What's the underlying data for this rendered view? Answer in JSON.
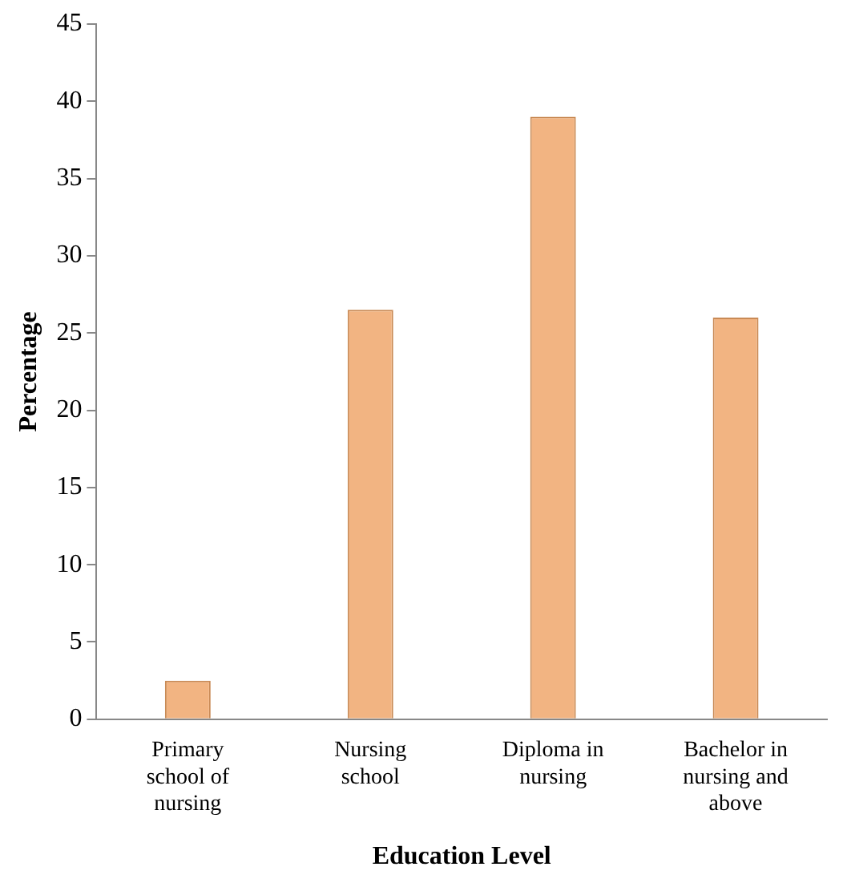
{
  "chart_data": {
    "type": "bar",
    "xlabel": "Education Level",
    "ylabel": "Percentage",
    "categories": [
      "Primary school of nursing",
      "Nursing school",
      "Diploma in nursing",
      "Bachelor in nursing and above"
    ],
    "values": [
      2.5,
      26.5,
      39,
      26
    ],
    "color": "#f2b482",
    "ylim": [
      0,
      45
    ],
    "yticks": [
      0,
      5,
      10,
      15,
      20,
      25,
      30,
      35,
      40,
      45
    ],
    "grid": false,
    "legend": false
  }
}
